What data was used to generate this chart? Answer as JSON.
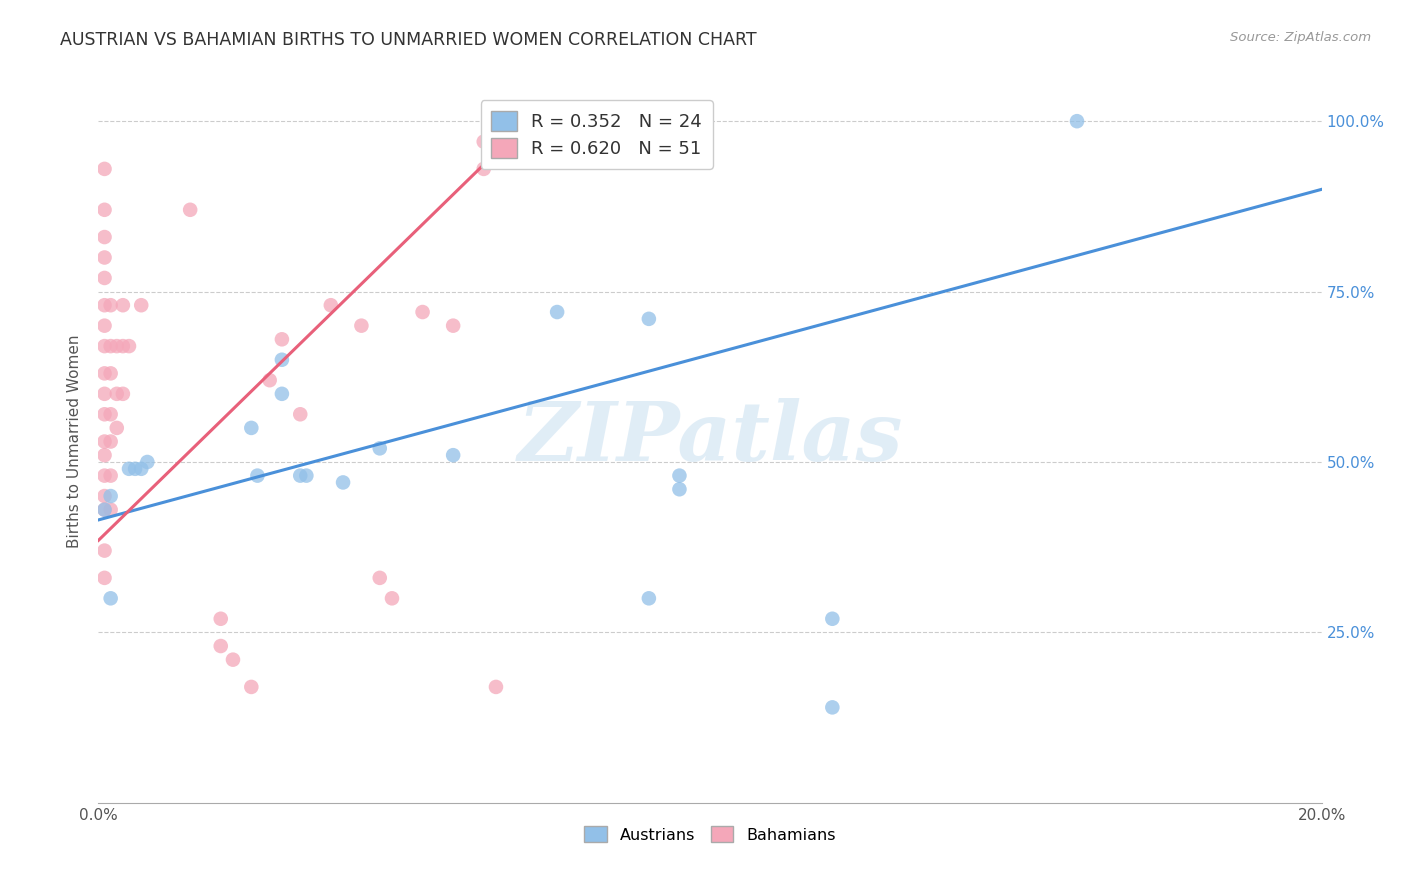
{
  "title": "AUSTRIAN VS BAHAMIAN BIRTHS TO UNMARRIED WOMEN CORRELATION CHART",
  "source": "Source: ZipAtlas.com",
  "ylabel": "Births to Unmarried Women",
  "xlim": [
    0.0,
    0.2
  ],
  "ylim": [
    0.0,
    1.06
  ],
  "xticks": [
    0.0,
    0.04,
    0.08,
    0.12,
    0.16,
    0.2
  ],
  "xticklabels": [
    "0.0%",
    "",
    "",
    "",
    "",
    "20.0%"
  ],
  "yticks": [
    0.0,
    0.25,
    0.5,
    0.75,
    1.0
  ],
  "yticklabels": [
    "",
    "25.0%",
    "50.0%",
    "75.0%",
    "100.0%"
  ],
  "blue_R": 0.352,
  "blue_N": 24,
  "pink_R": 0.62,
  "pink_N": 51,
  "blue_color": "#92c0e8",
  "pink_color": "#f4a7b9",
  "blue_line_color": "#4a90d9",
  "pink_line_color": "#e8607a",
  "watermark_text": "ZIPatlas",
  "watermark_color": "#c8dff0",
  "austrians_points": [
    [
      0.001,
      0.43
    ],
    [
      0.002,
      0.3
    ],
    [
      0.002,
      0.45
    ],
    [
      0.005,
      0.49
    ],
    [
      0.006,
      0.49
    ],
    [
      0.007,
      0.49
    ],
    [
      0.008,
      0.5
    ],
    [
      0.025,
      0.55
    ],
    [
      0.026,
      0.48
    ],
    [
      0.03,
      0.6
    ],
    [
      0.03,
      0.65
    ],
    [
      0.033,
      0.48
    ],
    [
      0.034,
      0.48
    ],
    [
      0.04,
      0.47
    ],
    [
      0.046,
      0.52
    ],
    [
      0.058,
      0.51
    ],
    [
      0.075,
      0.72
    ],
    [
      0.09,
      0.71
    ],
    [
      0.09,
      0.3
    ],
    [
      0.095,
      0.46
    ],
    [
      0.095,
      0.48
    ],
    [
      0.12,
      0.27
    ],
    [
      0.16,
      1.0
    ],
    [
      0.12,
      0.14
    ]
  ],
  "bahamians_points": [
    [
      0.001,
      0.33
    ],
    [
      0.001,
      0.37
    ],
    [
      0.001,
      0.43
    ],
    [
      0.001,
      0.45
    ],
    [
      0.001,
      0.48
    ],
    [
      0.001,
      0.51
    ],
    [
      0.001,
      0.53
    ],
    [
      0.001,
      0.57
    ],
    [
      0.001,
      0.6
    ],
    [
      0.001,
      0.63
    ],
    [
      0.001,
      0.67
    ],
    [
      0.001,
      0.7
    ],
    [
      0.001,
      0.73
    ],
    [
      0.001,
      0.77
    ],
    [
      0.001,
      0.8
    ],
    [
      0.001,
      0.83
    ],
    [
      0.001,
      0.87
    ],
    [
      0.001,
      0.93
    ],
    [
      0.002,
      0.43
    ],
    [
      0.002,
      0.48
    ],
    [
      0.002,
      0.53
    ],
    [
      0.002,
      0.57
    ],
    [
      0.002,
      0.63
    ],
    [
      0.002,
      0.67
    ],
    [
      0.002,
      0.73
    ],
    [
      0.003,
      0.67
    ],
    [
      0.003,
      0.6
    ],
    [
      0.003,
      0.55
    ],
    [
      0.004,
      0.6
    ],
    [
      0.004,
      0.67
    ],
    [
      0.004,
      0.73
    ],
    [
      0.005,
      0.67
    ],
    [
      0.007,
      0.73
    ],
    [
      0.015,
      0.87
    ],
    [
      0.02,
      0.23
    ],
    [
      0.02,
      0.27
    ],
    [
      0.022,
      0.21
    ],
    [
      0.025,
      0.17
    ],
    [
      0.028,
      0.62
    ],
    [
      0.03,
      0.68
    ],
    [
      0.033,
      0.57
    ],
    [
      0.038,
      0.73
    ],
    [
      0.043,
      0.7
    ],
    [
      0.046,
      0.33
    ],
    [
      0.048,
      0.3
    ],
    [
      0.053,
      0.72
    ],
    [
      0.058,
      0.7
    ],
    [
      0.063,
      0.93
    ],
    [
      0.063,
      0.97
    ],
    [
      0.065,
      0.17
    ],
    [
      0.07,
      0.97
    ]
  ],
  "blue_line_x": [
    0.0,
    0.2
  ],
  "blue_line_y": [
    0.415,
    0.9
  ],
  "pink_line_x": [
    0.0,
    0.068
  ],
  "pink_line_y": [
    0.385,
    0.98
  ]
}
